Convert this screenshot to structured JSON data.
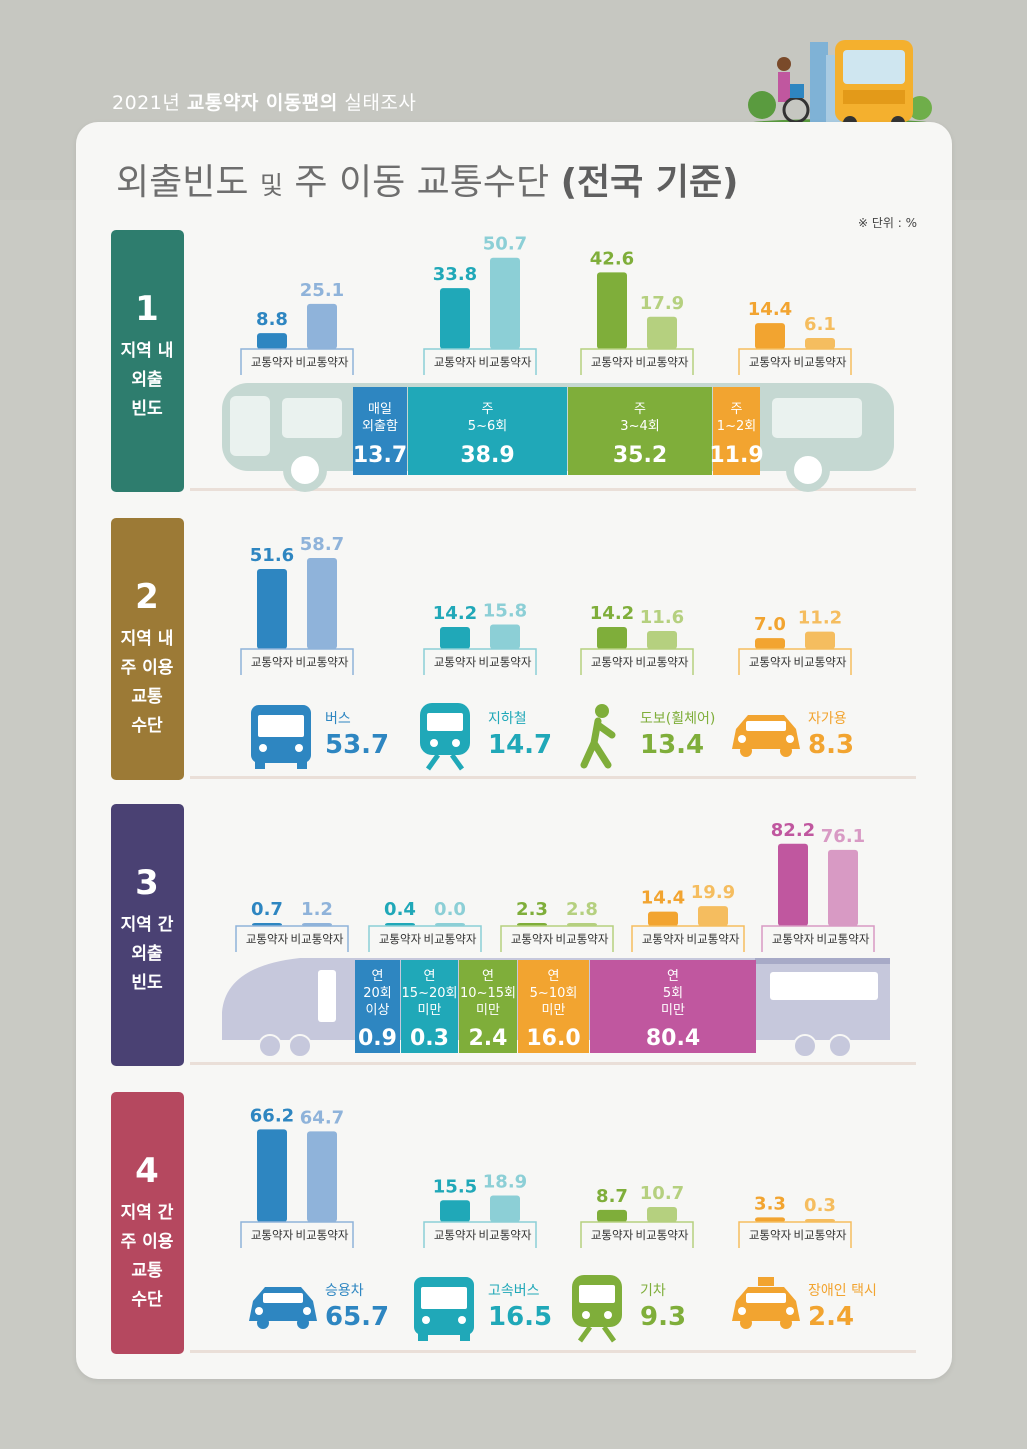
{
  "header": {
    "year": "2021년",
    "survey_bold": "교통약자 이동편의",
    "survey_rest": "실태조사"
  },
  "title": {
    "part1": "외출빈도",
    "part2": "및",
    "part3": "주 이동 교통수단",
    "part4": "(전국 기준)"
  },
  "unit_note": "※ 단위 : %",
  "colors": {
    "teal_dark": "#2e7d6e",
    "brown": "#9c7a36",
    "purple": "#4a4173",
    "rose": "#b5485f",
    "blue": "#2e86c1",
    "teal": "#20a8b8",
    "green": "#7fae3a",
    "orange": "#f2a430",
    "magenta": "#c0579f"
  },
  "legend_labels": [
    "교통약자",
    "비교통약자"
  ],
  "chart_data": [
    {
      "type": "bar",
      "section_number": "1",
      "section_label": [
        "지역 내",
        "외출",
        "빈도"
      ],
      "series_names": [
        "교통약자",
        "비교통약자"
      ],
      "groups": [
        {
          "values": [
            "8.8",
            "25.1"
          ],
          "color": "blue"
        },
        {
          "values": [
            "33.8",
            "50.7"
          ],
          "color": "teal"
        },
        {
          "values": [
            "42.6",
            "17.9"
          ],
          "color": "green"
        },
        {
          "values": [
            "14.4",
            "6.1"
          ],
          "color": "orange"
        }
      ],
      "totals": [
        {
          "label": [
            "매일",
            "외출함"
          ],
          "value": "13.7",
          "color": "blue"
        },
        {
          "label": [
            "주",
            "5~6회"
          ],
          "value": "38.9",
          "color": "teal"
        },
        {
          "label": [
            "주",
            "3~4회"
          ],
          "value": "35.2",
          "color": "green"
        },
        {
          "label": [
            "주",
            "1~2회"
          ],
          "value": "11.9",
          "color": "orange"
        }
      ]
    },
    {
      "type": "bar",
      "section_number": "2",
      "section_label": [
        "지역 내",
        "주 이용",
        "교통",
        "수단"
      ],
      "series_names": [
        "교통약자",
        "비교통약자"
      ],
      "groups": [
        {
          "values": [
            "51.6",
            "58.7"
          ],
          "color": "blue"
        },
        {
          "values": [
            "14.2",
            "15.8"
          ],
          "color": "teal"
        },
        {
          "values": [
            "14.2",
            "11.6"
          ],
          "color": "green"
        },
        {
          "values": [
            "7.0",
            "11.2"
          ],
          "color": "orange"
        }
      ],
      "modes": [
        {
          "icon": "bus-icon",
          "label": "버스",
          "value": "53.7",
          "color": "blue"
        },
        {
          "icon": "subway-icon",
          "label": "지하철",
          "value": "14.7",
          "color": "teal"
        },
        {
          "icon": "walking-icon",
          "label": "도보(휠체어)",
          "value": "13.4",
          "color": "green"
        },
        {
          "icon": "car-icon",
          "label": "자가용",
          "value": "8.3",
          "color": "orange"
        }
      ]
    },
    {
      "type": "bar",
      "section_number": "3",
      "section_label": [
        "지역 간",
        "외출",
        "빈도"
      ],
      "series_names": [
        "교통약자",
        "비교통약자"
      ],
      "groups": [
        {
          "values": [
            "0.7",
            "1.2"
          ],
          "color": "blue"
        },
        {
          "values": [
            "0.4",
            "0.0"
          ],
          "color": "teal"
        },
        {
          "values": [
            "2.3",
            "2.8"
          ],
          "color": "green"
        },
        {
          "values": [
            "14.4",
            "19.9"
          ],
          "color": "orange"
        },
        {
          "values": [
            "82.2",
            "76.1"
          ],
          "color": "magenta"
        }
      ],
      "totals": [
        {
          "label": [
            "연",
            "20회",
            "이상"
          ],
          "value": "0.9",
          "color": "blue"
        },
        {
          "label": [
            "연",
            "15~20회",
            "미만"
          ],
          "value": "0.3",
          "color": "teal"
        },
        {
          "label": [
            "연",
            "10~15회",
            "미만"
          ],
          "value": "2.4",
          "color": "green"
        },
        {
          "label": [
            "연",
            "5~10회",
            "미만"
          ],
          "value": "16.0",
          "color": "orange"
        },
        {
          "label": [
            "연",
            "5회",
            "미만"
          ],
          "value": "80.4",
          "color": "magenta"
        }
      ]
    },
    {
      "type": "bar",
      "section_number": "4",
      "section_label": [
        "지역 간",
        "주 이용",
        "교통",
        "수단"
      ],
      "series_names": [
        "교통약자",
        "비교통약자"
      ],
      "groups": [
        {
          "values": [
            "66.2",
            "64.7"
          ],
          "color": "blue"
        },
        {
          "values": [
            "15.5",
            "18.9"
          ],
          "color": "teal"
        },
        {
          "values": [
            "8.7",
            "10.7"
          ],
          "color": "green"
        },
        {
          "values": [
            "3.3",
            "0.3"
          ],
          "color": "orange"
        }
      ],
      "modes": [
        {
          "icon": "car-icon",
          "label": "승용차",
          "value": "65.7",
          "color": "blue"
        },
        {
          "icon": "express-bus-icon",
          "label": "고속버스",
          "value": "16.5",
          "color": "teal"
        },
        {
          "icon": "train-icon",
          "label": "기차",
          "value": "9.3",
          "color": "green"
        },
        {
          "icon": "taxi-icon",
          "label": "장애인 택시",
          "value": "2.4",
          "color": "orange"
        }
      ]
    }
  ]
}
